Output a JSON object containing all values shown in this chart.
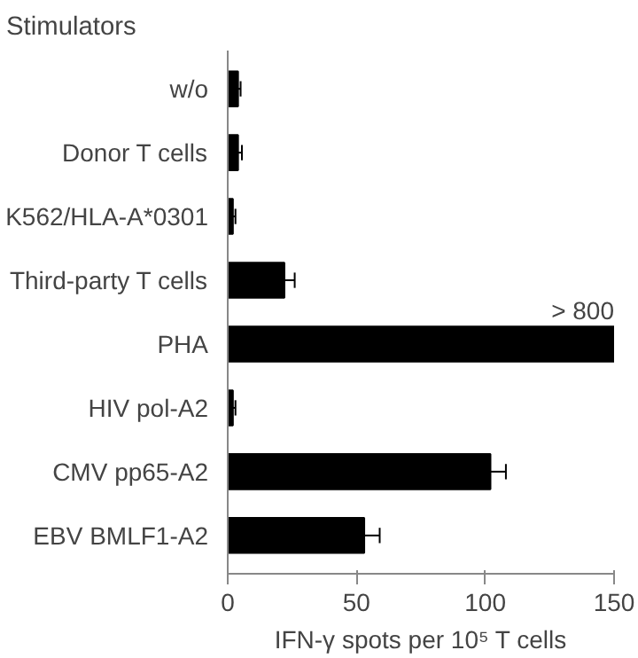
{
  "chart_data": {
    "type": "bar",
    "orientation": "horizontal",
    "title": "Stimulators",
    "xlabel": "IFN-γ spots per 10⁵ T cells",
    "categories": [
      "w/o",
      "Donor T cells",
      "K562/HLA-A*0301",
      "Third-party T cells",
      "PHA",
      "HIV pol-A2",
      "CMV pp65-A2",
      "EBV BMLF1-A2"
    ],
    "values": [
      4,
      4,
      2,
      22,
      150,
      2,
      102,
      53
    ],
    "errors": [
      [
        4,
        5
      ],
      [
        4,
        5.5
      ],
      [
        2,
        3
      ],
      [
        22,
        26
      ],
      null,
      [
        2,
        3
      ],
      [
        102,
        108
      ],
      [
        53,
        59
      ]
    ],
    "color": "#000000",
    "xlim": [
      0,
      150
    ],
    "xticks": [
      0,
      50,
      100,
      150
    ],
    "grid": false,
    "annotations": [
      {
        "text": "> 800",
        "x": 150,
        "y": "PHA"
      }
    ]
  }
}
